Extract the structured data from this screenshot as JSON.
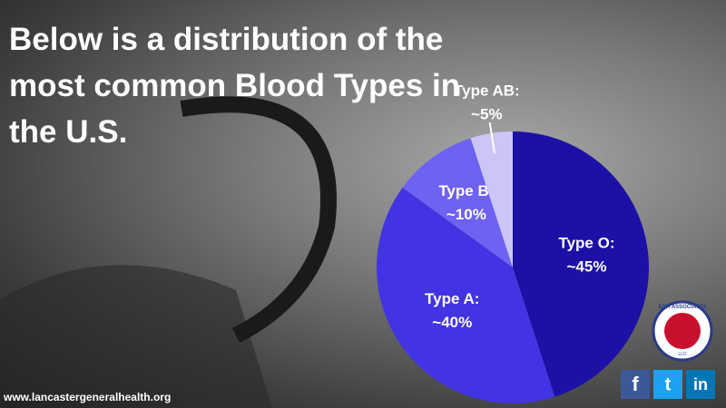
{
  "chart_data": {
    "type": "pie",
    "title": "Below is a distribution of the most common Blood Types in the U.S.",
    "categories": [
      "Type O:",
      "Type A:",
      "Type B:",
      "Type AB:"
    ],
    "values": [
      45,
      40,
      10,
      5
    ],
    "value_labels": [
      "~45%",
      "~40%",
      "~10%",
      "~5%"
    ],
    "colors": [
      "#1c10a6",
      "#4234e2",
      "#6d62f2",
      "#cbc6f7"
    ],
    "source": "www.lancastergeneralhealth.org",
    "logo": {
      "top": "EGA ASSOCIATES",
      "bottom": "LLC"
    },
    "social": [
      "f",
      "t",
      "in"
    ]
  }
}
